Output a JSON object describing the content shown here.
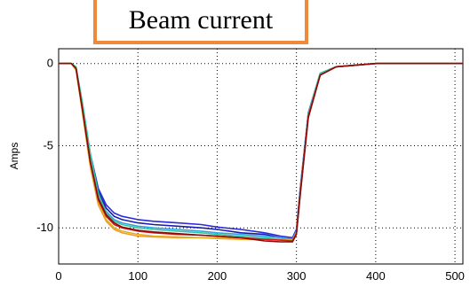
{
  "chart_data": {
    "type": "line",
    "title": "Beam current",
    "xlabel": "",
    "ylabel": "Amps",
    "xlim": [
      0,
      510
    ],
    "ylim": [
      -12.2,
      0.9
    ],
    "xticks": [
      "0",
      "100",
      "200",
      "300",
      "400",
      "500"
    ],
    "yticks": [
      "0",
      "-5",
      "-10"
    ],
    "grid": true,
    "legend": "none",
    "series": [
      {
        "color": "#2a2ad6",
        "x": [
          0,
          16,
          22,
          30,
          40,
          50,
          60,
          70,
          80,
          100,
          120,
          150,
          180,
          200,
          230,
          260,
          280,
          295,
          300,
          305,
          315,
          330,
          350,
          400,
          450,
          510
        ],
        "y": [
          0,
          0,
          -0.3,
          -2.5,
          -5.5,
          -7.6,
          -8.6,
          -9.1,
          -9.3,
          -9.5,
          -9.6,
          -9.7,
          -9.8,
          -9.95,
          -10.1,
          -10.3,
          -10.5,
          -10.6,
          -10.1,
          -7.5,
          -3,
          -0.6,
          -0.2,
          0,
          0,
          0
        ]
      },
      {
        "color": "#1b1bb0",
        "x": [
          0,
          16,
          22,
          30,
          40,
          50,
          60,
          70,
          80,
          100,
          120,
          150,
          180,
          200,
          230,
          260,
          280,
          295,
          300,
          305,
          315,
          330,
          350,
          400,
          450,
          510
        ],
        "y": [
          0,
          0,
          -0.3,
          -2.6,
          -5.7,
          -7.8,
          -8.8,
          -9.3,
          -9.5,
          -9.7,
          -9.8,
          -9.9,
          -10.0,
          -10.1,
          -10.3,
          -10.4,
          -10.6,
          -10.7,
          -10.2,
          -7.6,
          -3.1,
          -0.7,
          -0.2,
          0,
          0,
          0
        ]
      },
      {
        "color": "#3aa0e0",
        "x": [
          0,
          16,
          22,
          30,
          40,
          50,
          60,
          70,
          80,
          100,
          120,
          150,
          180,
          200,
          230,
          260,
          280,
          295,
          300,
          305,
          315,
          330,
          350,
          400,
          450,
          510
        ],
        "y": [
          0,
          0,
          -0.3,
          -2.7,
          -5.8,
          -8.0,
          -9.0,
          -9.5,
          -9.7,
          -9.9,
          -10.0,
          -10.1,
          -10.2,
          -10.3,
          -10.4,
          -10.5,
          -10.6,
          -10.7,
          -10.2,
          -7.6,
          -3.0,
          -0.6,
          -0.2,
          0,
          0,
          0
        ]
      },
      {
        "color": "#30c8a0",
        "x": [
          0,
          16,
          22,
          30,
          40,
          50,
          60,
          70,
          80,
          100,
          120,
          150,
          180,
          200,
          230,
          260,
          280,
          295,
          300,
          305,
          315,
          330,
          350,
          400,
          450,
          510
        ],
        "y": [
          0,
          0,
          -0.2,
          -2.4,
          -5.5,
          -7.9,
          -9.1,
          -9.6,
          -9.8,
          -10.0,
          -10.1,
          -10.2,
          -10.3,
          -10.4,
          -10.5,
          -10.6,
          -10.7,
          -10.75,
          -10.3,
          -7.7,
          -3.1,
          -0.6,
          -0.2,
          0,
          0,
          0
        ]
      },
      {
        "color": "#f29a2e",
        "x": [
          0,
          16,
          22,
          30,
          40,
          50,
          60,
          70,
          80,
          100,
          120,
          150,
          180,
          200,
          230,
          260,
          280,
          295,
          300,
          305,
          315,
          330,
          350,
          400,
          450,
          510
        ],
        "y": [
          0,
          0,
          -0.4,
          -3.0,
          -6.3,
          -8.6,
          -9.6,
          -10.1,
          -10.3,
          -10.5,
          -10.55,
          -10.6,
          -10.6,
          -10.65,
          -10.7,
          -10.7,
          -10.75,
          -10.8,
          -10.3,
          -7.8,
          -3.2,
          -0.7,
          -0.2,
          0,
          0,
          0
        ]
      },
      {
        "color": "#e0b020",
        "x": [
          0,
          16,
          22,
          30,
          40,
          50,
          60,
          70,
          80,
          100,
          120,
          150,
          180,
          200,
          230,
          260,
          280,
          295,
          300,
          305,
          315,
          330,
          350,
          400,
          450,
          510
        ],
        "y": [
          0,
          0,
          -0.4,
          -2.9,
          -6.2,
          -8.5,
          -9.5,
          -10.0,
          -10.2,
          -10.4,
          -10.5,
          -10.55,
          -10.6,
          -10.6,
          -10.65,
          -10.7,
          -10.7,
          -10.75,
          -10.3,
          -7.8,
          -3.2,
          -0.7,
          -0.2,
          0,
          0,
          0
        ]
      },
      {
        "color": "#d01818",
        "x": [
          0,
          16,
          22,
          30,
          40,
          50,
          60,
          70,
          80,
          100,
          120,
          150,
          180,
          200,
          230,
          260,
          280,
          295,
          300,
          305,
          315,
          330,
          350,
          400,
          450,
          510
        ],
        "y": [
          0,
          0,
          -0.3,
          -2.8,
          -6.0,
          -8.3,
          -9.3,
          -9.8,
          -10.0,
          -10.2,
          -10.3,
          -10.4,
          -10.45,
          -10.5,
          -10.6,
          -10.7,
          -10.75,
          -10.8,
          -10.35,
          -7.8,
          -3.2,
          -0.7,
          -0.2,
          0,
          0,
          0
        ]
      },
      {
        "color": "#8a0a0a",
        "x": [
          0,
          16,
          22,
          30,
          40,
          50,
          60,
          70,
          80,
          100,
          120,
          150,
          180,
          200,
          230,
          260,
          280,
          295,
          300,
          305,
          315,
          330,
          350,
          400,
          450,
          510
        ],
        "y": [
          0,
          0,
          -0.3,
          -2.8,
          -6.0,
          -8.2,
          -9.2,
          -9.7,
          -9.95,
          -10.15,
          -10.25,
          -10.35,
          -10.45,
          -10.5,
          -10.6,
          -10.8,
          -10.85,
          -10.85,
          -10.4,
          -7.9,
          -3.3,
          -0.7,
          -0.2,
          0,
          0,
          0
        ]
      }
    ]
  }
}
